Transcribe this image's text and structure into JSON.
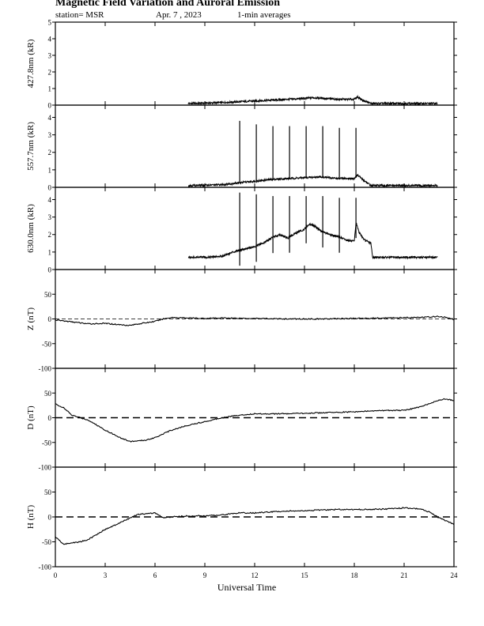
{
  "header": {
    "title": "Magnetic Field Variation and Auroral Emission",
    "station": "station= MSR",
    "date": "Apr. 7  , 2023",
    "averaging": "1-min averages"
  },
  "chart_data": {
    "type": "line",
    "xlabel": "Universal Time",
    "xlim": [
      0,
      24
    ],
    "xticks": [
      0,
      3,
      6,
      9,
      12,
      15,
      18,
      21,
      24
    ],
    "panels": [
      {
        "kind": "emission",
        "ylabel": "427.8nm (kR)",
        "ylim": [
          0,
          5
        ],
        "yticks": [
          0,
          1,
          2,
          3,
          4,
          5
        ],
        "x": [
          8,
          9,
          10,
          11,
          12,
          13,
          14,
          15,
          15.5,
          16,
          17,
          18,
          18.2,
          18.5,
          19,
          20,
          21,
          22,
          23
        ],
        "y": [
          0.1,
          0.12,
          0.15,
          0.2,
          0.25,
          0.3,
          0.35,
          0.4,
          0.45,
          0.42,
          0.35,
          0.35,
          0.5,
          0.3,
          0.1,
          0.1,
          0.1,
          0.1,
          0.1
        ],
        "spikes": []
      },
      {
        "kind": "emission",
        "ylabel": "557.7nm (kR)",
        "ylim": [
          0,
          4.7
        ],
        "yticks": [
          0,
          1,
          2,
          3,
          4
        ],
        "x": [
          8,
          9,
          10,
          11,
          12,
          13,
          14,
          15,
          16,
          17,
          18,
          18.2,
          18.5,
          19,
          20,
          21,
          22,
          23
        ],
        "y": [
          0.1,
          0.12,
          0.15,
          0.25,
          0.35,
          0.45,
          0.5,
          0.55,
          0.6,
          0.5,
          0.5,
          0.7,
          0.45,
          0.1,
          0.1,
          0.1,
          0.1,
          0.1
        ],
        "spikes": [
          {
            "t": 11.1,
            "v": 3.8
          },
          {
            "t": 12.1,
            "v": 3.6
          },
          {
            "t": 13.1,
            "v": 3.5
          },
          {
            "t": 14.1,
            "v": 3.5
          },
          {
            "t": 15.1,
            "v": 3.5
          },
          {
            "t": 16.1,
            "v": 3.5
          },
          {
            "t": 17.1,
            "v": 3.4
          },
          {
            "t": 18.1,
            "v": 3.4
          }
        ]
      },
      {
        "kind": "emission",
        "ylabel": "630.0nm (kR)",
        "ylim": [
          0,
          4.7
        ],
        "yticks": [
          0,
          1,
          2,
          3,
          4
        ],
        "x": [
          8,
          9,
          10,
          10.7,
          11,
          12,
          12.5,
          13,
          13.5,
          14,
          14.5,
          15,
          15.3,
          15.6,
          16,
          16.5,
          17,
          17.5,
          18,
          18.1,
          18.3,
          18.6,
          19,
          19.1,
          20,
          21,
          22,
          23
        ],
        "y": [
          0.7,
          0.7,
          0.75,
          1.0,
          1.1,
          1.3,
          1.5,
          1.8,
          2.0,
          1.8,
          2.1,
          2.3,
          2.6,
          2.5,
          2.2,
          2.0,
          1.9,
          1.7,
          1.6,
          2.7,
          2.1,
          1.7,
          1.5,
          0.7,
          0.7,
          0.7,
          0.7,
          0.7
        ],
        "spikes": [
          {
            "t": 11.1,
            "v": 4.4
          },
          {
            "t": 12.1,
            "v": 4.3
          },
          {
            "t": 13.1,
            "v": 4.2
          },
          {
            "t": 14.1,
            "v": 4.2
          },
          {
            "t": 15.1,
            "v": 4.2
          },
          {
            "t": 16.1,
            "v": 4.2
          },
          {
            "t": 17.1,
            "v": 4.1
          },
          {
            "t": 18.1,
            "v": 4.1
          }
        ]
      },
      {
        "kind": "magnetic",
        "ylabel": "Z (nT)",
        "ylim": [
          -100,
          100
        ],
        "yticks": [
          -100,
          -50,
          0,
          50
        ],
        "x": [
          0,
          1,
          2,
          3,
          4,
          4.5,
          5,
          6,
          6.5,
          7,
          8,
          9,
          10,
          12,
          14,
          16,
          18,
          20,
          22,
          23,
          23.5,
          24
        ],
        "y": [
          -2,
          -6,
          -10,
          -9,
          -12,
          -13,
          -10,
          -5,
          0,
          3,
          2,
          1,
          2,
          1,
          0,
          0,
          1,
          2,
          3,
          5,
          3,
          -1
        ]
      },
      {
        "kind": "magnetic",
        "ylabel": "D (nT)",
        "ylim": [
          -100,
          100
        ],
        "yticks": [
          -100,
          -50,
          0,
          50
        ],
        "x": [
          0,
          0.5,
          1,
          1.5,
          2,
          3,
          4,
          4.5,
          5,
          5.5,
          6,
          7,
          8,
          9,
          10,
          11,
          12,
          14,
          16,
          18,
          20,
          21,
          22,
          23,
          23.5,
          24
        ],
        "y": [
          28,
          20,
          5,
          0,
          -5,
          -25,
          -42,
          -48,
          -47,
          -45,
          -40,
          -25,
          -15,
          -8,
          0,
          5,
          8,
          8,
          10,
          12,
          15,
          15,
          22,
          35,
          38,
          35
        ]
      },
      {
        "kind": "magnetic",
        "ylabel": "H (nT)",
        "ylim": [
          -100,
          100
        ],
        "yticks": [
          -100,
          -50,
          0,
          50
        ],
        "x": [
          0,
          0.5,
          1,
          1.5,
          2,
          3,
          3.5,
          4,
          4.5,
          5,
          6,
          6.5,
          7,
          8,
          9,
          10,
          11,
          12,
          13,
          14,
          15,
          16,
          17,
          18,
          19,
          20,
          21,
          22,
          22.5,
          23,
          24
        ],
        "y": [
          -40,
          -55,
          -52,
          -50,
          -45,
          -25,
          -18,
          -10,
          -2,
          5,
          8,
          -2,
          0,
          2,
          2,
          4,
          8,
          8,
          10,
          12,
          12,
          14,
          15,
          15,
          15,
          16,
          18,
          16,
          10,
          0,
          -15
        ]
      }
    ]
  }
}
